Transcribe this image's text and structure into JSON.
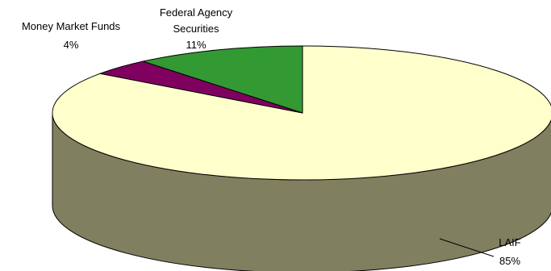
{
  "chart_data": {
    "type": "pie",
    "style": "3d",
    "slices": [
      {
        "label": "LAIF",
        "value": 85,
        "value_text": "85%",
        "color": "#ffffcc",
        "side_color": "#808060"
      },
      {
        "label": "Money Market Funds",
        "value": 4,
        "value_text": "4%",
        "color": "#800060",
        "side_color": "#400030"
      },
      {
        "label": "Federal Agency Securities",
        "label_lines": [
          "Federal Agency",
          "Securities"
        ],
        "value": 11,
        "value_text": "11%",
        "color": "#339933",
        "side_color": "#1a4d1a"
      }
    ],
    "outline_color": "#000000",
    "legend": "none"
  }
}
